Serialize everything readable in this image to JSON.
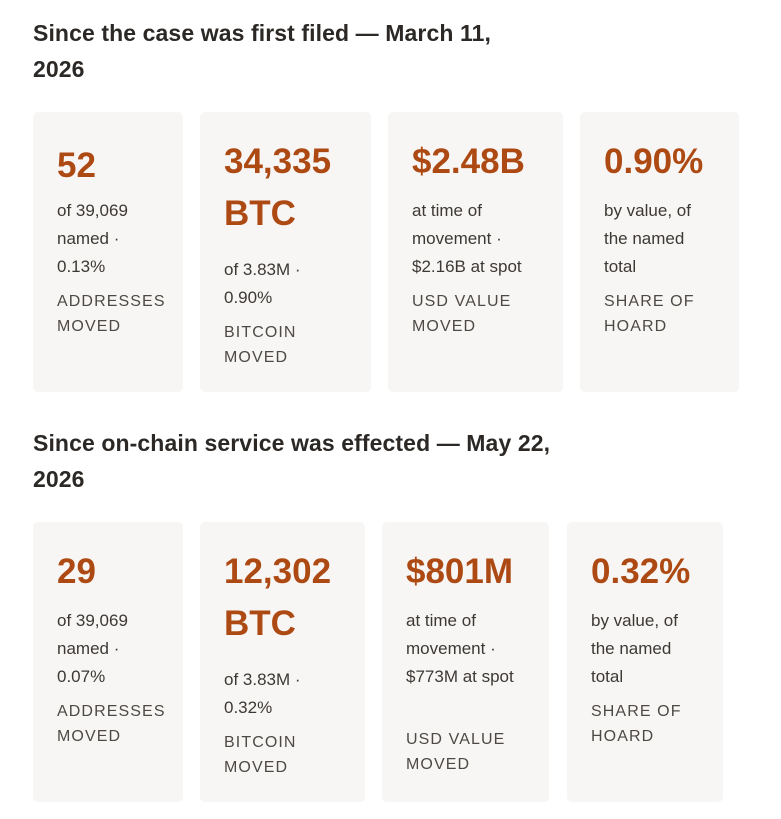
{
  "sections": [
    {
      "heading": "Since the case was first filed — March 11, 2026",
      "cards": [
        {
          "value": "52",
          "detail": "of 39,069 named · 0.13%",
          "label": "ADDRESSES MOVED"
        },
        {
          "value": "34,335 BTC",
          "detail": "of 3.83M · 0.90%",
          "label": "BITCOIN MOVED"
        },
        {
          "value": "$2.48B",
          "detail": "at time of movement · $2.16B at spot",
          "label": "USD VALUE MOVED"
        },
        {
          "value": "0.90%",
          "detail": "by value, of the named total",
          "label": "SHARE OF HOARD"
        }
      ]
    },
    {
      "heading": "Since on-chain service was effected — May 22, 2026",
      "cards": [
        {
          "value": "29",
          "detail": "of 39,069 named · 0.07%",
          "label": "ADDRESSES MOVED"
        },
        {
          "value": "12,302 BTC",
          "detail": "of 3.83M · 0.32%",
          "label": "BITCOIN MOVED"
        },
        {
          "value": "$801M",
          "detail": "at time of movement · $773M at spot",
          "label": "USD VALUE MOVED"
        },
        {
          "value": "0.32%",
          "detail": "by value, of the named total",
          "label": "SHARE OF HOARD"
        }
      ]
    }
  ]
}
